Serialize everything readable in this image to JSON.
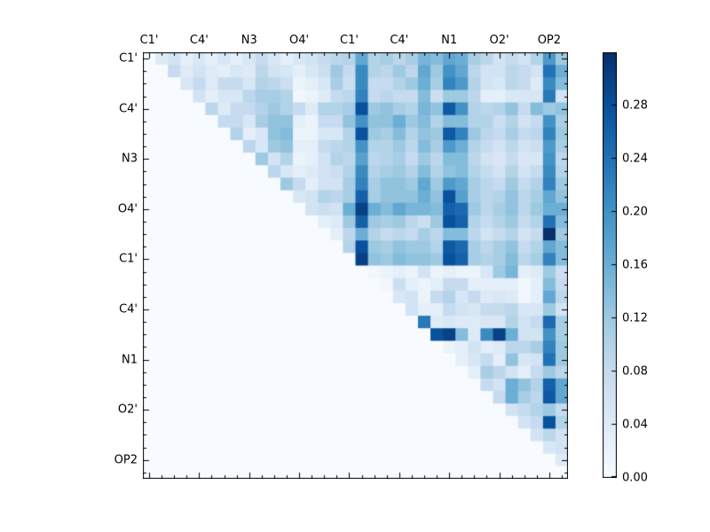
{
  "chart_data": {
    "type": "heatmap",
    "title": "",
    "n": 34,
    "x_axis_side": "top",
    "axis_tick_labels": [
      "C1'",
      "C4'",
      "N3",
      "O4'",
      "C1'",
      "C4'",
      "N1",
      "O2'",
      "OP2"
    ],
    "axis_tick_label_indices": [
      0,
      4,
      8,
      12,
      16,
      20,
      24,
      28,
      32
    ],
    "colormap": "Blues",
    "vmin": 0.0,
    "vmax": 0.32,
    "legend_position": "right-colorbar",
    "grid": false,
    "colorbar_tick_labels": [
      "0.00",
      "0.04",
      "0.08",
      "0.12",
      "0.16",
      "0.20",
      "0.24",
      "0.28"
    ],
    "colorbar_tick_values": [
      0.0,
      0.04,
      0.08,
      0.12,
      0.16,
      0.2,
      0.24,
      0.28
    ],
    "matrix": [
      [
        0,
        0.04,
        0.06,
        0.03,
        0.05,
        0.03,
        0.05,
        0.03,
        0.05,
        0.08,
        0.05,
        0.03,
        0.05,
        0.06,
        0.08,
        0.09,
        0.1,
        0.17,
        0.1,
        0.11,
        0.09,
        0.11,
        0.15,
        0.14,
        0.17,
        0.16,
        0.11,
        0.09,
        0.06,
        0.08,
        0.06,
        0.1,
        0.19,
        0.12
      ],
      [
        0,
        0,
        0.08,
        0.04,
        0.06,
        0.04,
        0.03,
        0.05,
        0.04,
        0.09,
        0.06,
        0.05,
        0.03,
        0.05,
        0.07,
        0.12,
        0.08,
        0.21,
        0.1,
        0.09,
        0.12,
        0.09,
        0.17,
        0.12,
        0.2,
        0.17,
        0.09,
        0.06,
        0.06,
        0.09,
        0.08,
        0.06,
        0.24,
        0.16
      ],
      [
        0,
        0,
        0,
        0.05,
        0.08,
        0.04,
        0.08,
        0.08,
        0.05,
        0.1,
        0.09,
        0.07,
        0.02,
        0.03,
        0.05,
        0.11,
        0.07,
        0.21,
        0.08,
        0.08,
        0.1,
        0.12,
        0.16,
        0.11,
        0.22,
        0.19,
        0.1,
        0.06,
        0.05,
        0.09,
        0.08,
        0.04,
        0.21,
        0.14
      ],
      [
        0,
        0,
        0,
        0,
        0.06,
        0.03,
        0.05,
        0.05,
        0.09,
        0.11,
        0.11,
        0.1,
        0.01,
        0.02,
        0.04,
        0.08,
        0.09,
        0.22,
        0.08,
        0.09,
        0.08,
        0.08,
        0.14,
        0.07,
        0.12,
        0.12,
        0.09,
        0.03,
        0.03,
        0.05,
        0.05,
        0.05,
        0.23,
        0.06
      ],
      [
        0,
        0,
        0,
        0,
        0,
        0.09,
        0.04,
        0.08,
        0.08,
        0.1,
        0.12,
        0.1,
        0.08,
        0.04,
        0.1,
        0.1,
        0.11,
        0.28,
        0.12,
        0.13,
        0.11,
        0.1,
        0.15,
        0.13,
        0.27,
        0.2,
        0.1,
        0.09,
        0.1,
        0.13,
        0.08,
        0.14,
        0.12,
        0.13
      ],
      [
        0,
        0,
        0,
        0,
        0,
        0,
        0.08,
        0.08,
        0.05,
        0.11,
        0.13,
        0.13,
        0.03,
        0.02,
        0.08,
        0.08,
        0.13,
        0.2,
        0.13,
        0.13,
        0.16,
        0.12,
        0.14,
        0.1,
        0.14,
        0.14,
        0.1,
        0.1,
        0.07,
        0.1,
        0.06,
        0.08,
        0.2,
        0.11
      ],
      [
        0,
        0,
        0,
        0,
        0,
        0,
        0,
        0.1,
        0.03,
        0.05,
        0.13,
        0.14,
        0.02,
        0.02,
        0.05,
        0.05,
        0.1,
        0.28,
        0.12,
        0.11,
        0.14,
        0.1,
        0.13,
        0.12,
        0.27,
        0.22,
        0.12,
        0.09,
        0.08,
        0.11,
        0.08,
        0.09,
        0.22,
        0.12
      ],
      [
        0,
        0,
        0,
        0,
        0,
        0,
        0,
        0,
        0.09,
        0.05,
        0.12,
        0.13,
        0.03,
        0.03,
        0.08,
        0.09,
        0.1,
        0.2,
        0.1,
        0.1,
        0.12,
        0.09,
        0.14,
        0.11,
        0.19,
        0.16,
        0.1,
        0.08,
        0.06,
        0.09,
        0.06,
        0.07,
        0.19,
        0.11
      ],
      [
        0,
        0,
        0,
        0,
        0,
        0,
        0,
        0,
        0,
        0.12,
        0.06,
        0.1,
        0.02,
        0.03,
        0.06,
        0.1,
        0.09,
        0.18,
        0.09,
        0.1,
        0.11,
        0.08,
        0.12,
        0.09,
        0.14,
        0.14,
        0.09,
        0.06,
        0.05,
        0.08,
        0.05,
        0.05,
        0.2,
        0.09
      ],
      [
        0,
        0,
        0,
        0,
        0,
        0,
        0,
        0,
        0,
        0,
        0.09,
        0.05,
        0.03,
        0.04,
        0.06,
        0.07,
        0.1,
        0.21,
        0.1,
        0.11,
        0.12,
        0.1,
        0.14,
        0.1,
        0.13,
        0.14,
        0.1,
        0.08,
        0.06,
        0.1,
        0.06,
        0.08,
        0.21,
        0.1
      ],
      [
        0,
        0,
        0,
        0,
        0,
        0,
        0,
        0,
        0,
        0,
        0,
        0.12,
        0.08,
        0.03,
        0.06,
        0.06,
        0.11,
        0.22,
        0.11,
        0.13,
        0.13,
        0.12,
        0.17,
        0.12,
        0.19,
        0.17,
        0.11,
        0.09,
        0.08,
        0.12,
        0.08,
        0.1,
        0.22,
        0.12
      ],
      [
        0,
        0,
        0,
        0,
        0,
        0,
        0,
        0,
        0,
        0,
        0,
        0,
        0.05,
        0.06,
        0.1,
        0.09,
        0.11,
        0.26,
        0.11,
        0.13,
        0.13,
        0.13,
        0.16,
        0.13,
        0.28,
        0.18,
        0.11,
        0.09,
        0.1,
        0.13,
        0.09,
        0.11,
        0.17,
        0.13
      ],
      [
        0,
        0,
        0,
        0,
        0,
        0,
        0,
        0,
        0,
        0,
        0,
        0,
        0,
        0.06,
        0.07,
        0.06,
        0.16,
        0.3,
        0.16,
        0.14,
        0.17,
        0.15,
        0.15,
        0.14,
        0.26,
        0.25,
        0.12,
        0.09,
        0.11,
        0.13,
        0.09,
        0.12,
        0.16,
        0.16
      ],
      [
        0,
        0,
        0,
        0,
        0,
        0,
        0,
        0,
        0,
        0,
        0,
        0,
        0,
        0,
        0.03,
        0.04,
        0.12,
        0.26,
        0.12,
        0.11,
        0.12,
        0.09,
        0.07,
        0.12,
        0.28,
        0.26,
        0.1,
        0.08,
        0.1,
        0.12,
        0.08,
        0.1,
        0.24,
        0.14
      ],
      [
        0,
        0,
        0,
        0,
        0,
        0,
        0,
        0,
        0,
        0,
        0,
        0,
        0,
        0,
        0,
        0.03,
        0.09,
        0.16,
        0.1,
        0.08,
        0.09,
        0.08,
        0.11,
        0.09,
        0.14,
        0.14,
        0.09,
        0.06,
        0.08,
        0.1,
        0.06,
        0.08,
        0.32,
        0.12
      ],
      [
        0,
        0,
        0,
        0,
        0,
        0,
        0,
        0,
        0,
        0,
        0,
        0,
        0,
        0,
        0,
        0,
        0.1,
        0.28,
        0.12,
        0.11,
        0.13,
        0.12,
        0.12,
        0.1,
        0.27,
        0.25,
        0.11,
        0.09,
        0.11,
        0.13,
        0.08,
        0.1,
        0.17,
        0.14
      ],
      [
        0,
        0,
        0,
        0,
        0,
        0,
        0,
        0,
        0,
        0,
        0,
        0,
        0,
        0,
        0,
        0,
        0,
        0.3,
        0.13,
        0.12,
        0.14,
        0.13,
        0.13,
        0.12,
        0.28,
        0.26,
        0.11,
        0.1,
        0.11,
        0.14,
        0.09,
        0.11,
        0.22,
        0.14
      ],
      [
        0,
        0,
        0,
        0,
        0,
        0,
        0,
        0,
        0,
        0,
        0,
        0,
        0,
        0,
        0,
        0,
        0,
        0,
        0.01,
        0.02,
        0.03,
        0.02,
        0.06,
        0.02,
        0.03,
        0.02,
        0.02,
        0.05,
        0.12,
        0.15,
        0.03,
        0.04,
        0.12,
        0.07
      ],
      [
        0,
        0,
        0,
        0,
        0,
        0,
        0,
        0,
        0,
        0,
        0,
        0,
        0,
        0,
        0,
        0,
        0,
        0,
        0,
        0.01,
        0.07,
        0.03,
        0.02,
        0.03,
        0.08,
        0.08,
        0.03,
        0.03,
        0.03,
        0.03,
        0.01,
        0.03,
        0.14,
        0.08
      ],
      [
        0,
        0,
        0,
        0,
        0,
        0,
        0,
        0,
        0,
        0,
        0,
        0,
        0,
        0,
        0,
        0,
        0,
        0,
        0,
        0,
        0.05,
        0.06,
        0.02,
        0.08,
        0.1,
        0.05,
        0.08,
        0.04,
        0.05,
        0.04,
        0.01,
        0.03,
        0.17,
        0.09
      ],
      [
        0,
        0,
        0,
        0,
        0,
        0,
        0,
        0,
        0,
        0,
        0,
        0,
        0,
        0,
        0,
        0,
        0,
        0,
        0,
        0,
        0,
        0.06,
        0.03,
        0.03,
        0.08,
        0.06,
        0.05,
        0.08,
        0.08,
        0.09,
        0.05,
        0.05,
        0.12,
        0.06
      ],
      [
        0,
        0,
        0,
        0,
        0,
        0,
        0,
        0,
        0,
        0,
        0,
        0,
        0,
        0,
        0,
        0,
        0,
        0,
        0,
        0,
        0,
        0,
        0.23,
        0.04,
        0.05,
        0.04,
        0.04,
        0.05,
        0.05,
        0.1,
        0.06,
        0.08,
        0.25,
        0.11
      ],
      [
        0,
        0,
        0,
        0,
        0,
        0,
        0,
        0,
        0,
        0,
        0,
        0,
        0,
        0,
        0,
        0,
        0,
        0,
        0,
        0,
        0,
        0,
        0,
        0.28,
        0.3,
        0.14,
        0.04,
        0.21,
        0.3,
        0.16,
        0.06,
        0.06,
        0.2,
        0.11
      ],
      [
        0,
        0,
        0,
        0,
        0,
        0,
        0,
        0,
        0,
        0,
        0,
        0,
        0,
        0,
        0,
        0,
        0,
        0,
        0,
        0,
        0,
        0,
        0,
        0,
        0.02,
        0.03,
        0.06,
        0.03,
        0.04,
        0.09,
        0.09,
        0.11,
        0.22,
        0.12
      ],
      [
        0,
        0,
        0,
        0,
        0,
        0,
        0,
        0,
        0,
        0,
        0,
        0,
        0,
        0,
        0,
        0,
        0,
        0,
        0,
        0,
        0,
        0,
        0,
        0,
        0,
        0.03,
        0.05,
        0.08,
        0.03,
        0.13,
        0.05,
        0.06,
        0.24,
        0.12
      ],
      [
        0,
        0,
        0,
        0,
        0,
        0,
        0,
        0,
        0,
        0,
        0,
        0,
        0,
        0,
        0,
        0,
        0,
        0,
        0,
        0,
        0,
        0,
        0,
        0,
        0,
        0,
        0.03,
        0.11,
        0.09,
        0.06,
        0.03,
        0.08,
        0.12,
        0.09
      ],
      [
        0,
        0,
        0,
        0,
        0,
        0,
        0,
        0,
        0,
        0,
        0,
        0,
        0,
        0,
        0,
        0,
        0,
        0,
        0,
        0,
        0,
        0,
        0,
        0,
        0,
        0,
        0,
        0.08,
        0.06,
        0.16,
        0.13,
        0.1,
        0.26,
        0.17
      ],
      [
        0,
        0,
        0,
        0,
        0,
        0,
        0,
        0,
        0,
        0,
        0,
        0,
        0,
        0,
        0,
        0,
        0,
        0,
        0,
        0,
        0,
        0,
        0,
        0,
        0,
        0,
        0,
        0,
        0.08,
        0.16,
        0.11,
        0.09,
        0.27,
        0.17
      ],
      [
        0,
        0,
        0,
        0,
        0,
        0,
        0,
        0,
        0,
        0,
        0,
        0,
        0,
        0,
        0,
        0,
        0,
        0,
        0,
        0,
        0,
        0,
        0,
        0,
        0,
        0,
        0,
        0,
        0,
        0.06,
        0.08,
        0.1,
        0.12,
        0.08
      ],
      [
        0,
        0,
        0,
        0,
        0,
        0,
        0,
        0,
        0,
        0,
        0,
        0,
        0,
        0,
        0,
        0,
        0,
        0,
        0,
        0,
        0,
        0,
        0,
        0,
        0,
        0,
        0,
        0,
        0,
        0,
        0.06,
        0.08,
        0.28,
        0.1
      ],
      [
        0,
        0,
        0,
        0,
        0,
        0,
        0,
        0,
        0,
        0,
        0,
        0,
        0,
        0,
        0,
        0,
        0,
        0,
        0,
        0,
        0,
        0,
        0,
        0,
        0,
        0,
        0,
        0,
        0,
        0,
        0,
        0.06,
        0.09,
        0.06
      ],
      [
        0,
        0,
        0,
        0,
        0,
        0,
        0,
        0,
        0,
        0,
        0,
        0,
        0,
        0,
        0,
        0,
        0,
        0,
        0,
        0,
        0,
        0,
        0,
        0,
        0,
        0,
        0,
        0,
        0,
        0,
        0,
        0,
        0.05,
        0.06
      ],
      [
        0,
        0,
        0,
        0,
        0,
        0,
        0,
        0,
        0,
        0,
        0,
        0,
        0,
        0,
        0,
        0,
        0,
        0,
        0,
        0,
        0,
        0,
        0,
        0,
        0,
        0,
        0,
        0,
        0,
        0,
        0,
        0,
        0,
        0.04
      ],
      [
        0,
        0,
        0,
        0,
        0,
        0,
        0,
        0,
        0,
        0,
        0,
        0,
        0,
        0,
        0,
        0,
        0,
        0,
        0,
        0,
        0,
        0,
        0,
        0,
        0,
        0,
        0,
        0,
        0,
        0,
        0,
        0,
        0,
        0
      ]
    ]
  },
  "colors": {
    "background": "#ffffff",
    "axis": "#000000",
    "text": "#000000",
    "colormap_stop_positions": [
      0,
      0.125,
      0.25,
      0.375,
      0.5,
      0.625,
      0.75,
      0.875,
      1
    ],
    "colormap_stop_hex": [
      "#f7fbff",
      "#deebf7",
      "#c6dbef",
      "#9ecae1",
      "#6baed6",
      "#4292c6",
      "#2171b5",
      "#08519c",
      "#08306b"
    ]
  }
}
